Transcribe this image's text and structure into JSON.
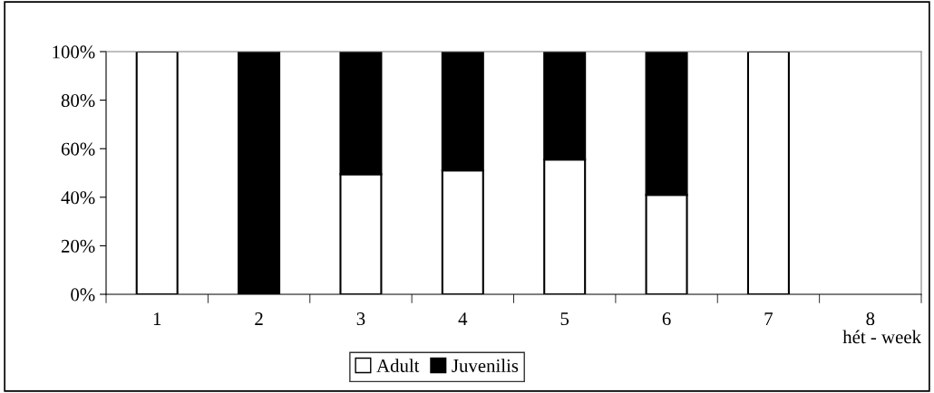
{
  "chart_data": {
    "type": "bar",
    "stacked": true,
    "categories": [
      "1",
      "2",
      "3",
      "4",
      "5",
      "6",
      "7",
      "8"
    ],
    "xlabel": "hét - week",
    "series": [
      {
        "name": "Adult",
        "color": "#ffffff",
        "values": [
          100,
          0,
          49.5,
          51,
          55.5,
          41,
          100,
          null
        ]
      },
      {
        "name": "Juvenilis",
        "color": "#000000",
        "values": [
          0,
          100,
          50.5,
          49,
          44.5,
          59,
          0,
          null
        ]
      }
    ],
    "ylim": [
      0,
      100
    ],
    "yticks": [
      {
        "value": 0,
        "label": "0%"
      },
      {
        "value": 20,
        "label": "20%"
      },
      {
        "value": 40,
        "label": "40%"
      },
      {
        "value": 60,
        "label": "60%"
      },
      {
        "value": 80,
        "label": "80%"
      },
      {
        "value": 100,
        "label": "100%"
      }
    ],
    "grid": false,
    "legend": "bottom"
  }
}
